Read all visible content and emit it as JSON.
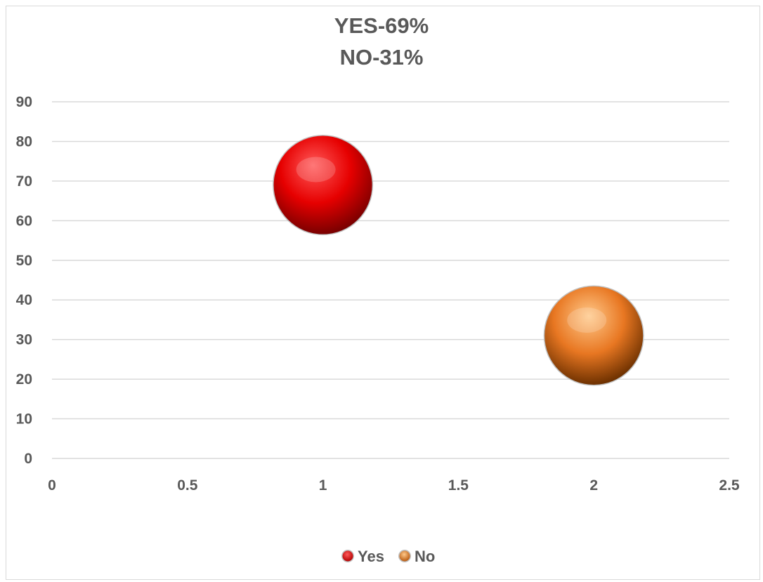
{
  "chart_data": {
    "type": "scatter",
    "title_lines": [
      "YES-69%",
      "NO-31%"
    ],
    "xlabel": "",
    "ylabel": "",
    "xlim": [
      0,
      2.5
    ],
    "ylim": [
      0,
      90
    ],
    "x_ticks": [
      "0",
      "0.5",
      "1",
      "1.5",
      "2",
      "2.5"
    ],
    "y_ticks": [
      "0",
      "10",
      "20",
      "30",
      "40",
      "50",
      "60",
      "70",
      "80",
      "90"
    ],
    "grid": "horizontal",
    "legend_position": "bottom",
    "series": [
      {
        "name": "Yes",
        "x": [
          1
        ],
        "y": [
          69
        ],
        "color": "#e60000"
      },
      {
        "name": "No",
        "x": [
          2
        ],
        "y": [
          31
        ],
        "color": "#e87722"
      }
    ]
  }
}
